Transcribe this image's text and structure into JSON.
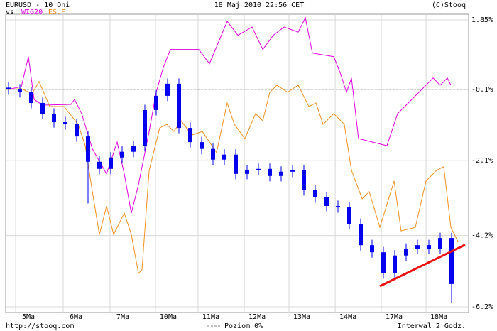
{
  "chart_data": {
    "type": "candlestick",
    "title": "EURUSD - 10 Dni",
    "vs": "vs",
    "date": "18 Maj 2010 22:56 CET",
    "copyright": "(C)Stooq",
    "footer_left": "http://stooq.com",
    "footer_right": "Interwal 2 Godz.",
    "level_label": "Poziom 0%",
    "level": -0.1,
    "candle_color": "#0000ee",
    "x": [
      0,
      1,
      2,
      3,
      4,
      5,
      6,
      7,
      8,
      9,
      10,
      11,
      12,
      13,
      14,
      15,
      16,
      17,
      18,
      19,
      20,
      21,
      22,
      23,
      24,
      25,
      26,
      27,
      28,
      29,
      30,
      31,
      32,
      33,
      34,
      35,
      36,
      37,
      38,
      39
    ],
    "open": [
      -0.05,
      -0.1,
      -0.18,
      -0.48,
      -0.78,
      -1.02,
      -1.08,
      -1.42,
      -2.13,
      -2.33,
      -2.01,
      -1.85,
      -1.69,
      -0.68,
      -0.28,
      0.06,
      -1.18,
      -1.58,
      -1.77,
      -2.07,
      -1.93,
      -2.47,
      -2.37,
      -2.33,
      -2.53,
      -2.41,
      -2.37,
      -2.93,
      -3.13,
      -3.37,
      -3.41,
      -3.87,
      -4.47,
      -4.67,
      -5.26,
      -4.76,
      -4.57,
      -4.47,
      -4.57,
      -4.27
    ],
    "high": [
      0.1,
      0.05,
      -0.03,
      -0.33,
      -0.63,
      -0.87,
      -0.93,
      -1.27,
      -1.98,
      -1.86,
      -1.7,
      -1.54,
      -0.53,
      -0.13,
      0.21,
      0.21,
      -1.03,
      -1.43,
      -1.62,
      -1.78,
      -1.78,
      -2.22,
      -2.18,
      -2.18,
      -2.26,
      -2.22,
      -2.22,
      -2.78,
      -2.98,
      -3.22,
      -3.26,
      -3.72,
      -4.32,
      -4.52,
      -4.61,
      -4.42,
      -4.32,
      -4.32,
      -4.12,
      -4.12
    ],
    "low": [
      -0.25,
      -0.33,
      -0.63,
      -0.93,
      -1.17,
      -1.23,
      -1.57,
      -3.3,
      -2.48,
      -2.48,
      -2.16,
      -2.0,
      -1.84,
      -0.83,
      -0.43,
      -1.33,
      -1.73,
      -1.92,
      -2.22,
      -2.22,
      -2.62,
      -2.62,
      -2.52,
      -2.68,
      -2.68,
      -2.56,
      -3.08,
      -3.28,
      -3.52,
      -3.56,
      -4.02,
      -4.62,
      -4.82,
      -5.41,
      -5.41,
      -4.91,
      -4.72,
      -4.72,
      -4.72,
      -6.1
    ],
    "close": [
      -0.1,
      -0.18,
      -0.48,
      -0.78,
      -1.02,
      -1.08,
      -1.42,
      -2.13,
      -2.33,
      -2.01,
      -1.85,
      -1.69,
      -0.68,
      -0.28,
      0.06,
      -1.18,
      -1.58,
      -1.77,
      -2.07,
      -1.93,
      -2.47,
      -2.37,
      -2.33,
      -2.53,
      -2.41,
      -2.37,
      -2.93,
      -3.13,
      -3.37,
      -3.41,
      -3.87,
      -4.47,
      -4.67,
      -5.26,
      -4.76,
      -4.57,
      -4.47,
      -4.57,
      -4.27,
      -5.56
    ],
    "series": [
      {
        "name": "WIG20",
        "color": "#e000e0",
        "x": [
          0,
          1.13,
          1.75,
          2.25,
          3.0,
          5.5,
          5.81,
          6.44,
          7.38,
          8.63,
          9.56,
          10.19,
          10.81,
          11.44,
          12.38,
          13.0,
          13.63,
          14.25,
          16.75,
          17.69,
          19.25,
          20.19,
          21.44,
          22.38,
          23.31,
          24.25,
          25.5,
          26.13,
          26.75,
          28.63,
          29.25,
          29.75,
          30.19,
          30.81,
          33.31,
          34.25,
          34.88,
          36.13,
          37.38,
          38.0,
          38.63,
          38.94
        ],
        "values": [
          -0.1,
          -0.02,
          0.82,
          -0.38,
          -0.54,
          -0.52,
          -0.38,
          -0.78,
          -1.77,
          -2.47,
          -1.58,
          -2.47,
          -3.57,
          -2.77,
          -1.28,
          -0.18,
          0.52,
          1.02,
          1.02,
          0.62,
          1.81,
          1.42,
          1.65,
          1.02,
          1.42,
          1.65,
          1.51,
          1.91,
          0.92,
          0.82,
          0.32,
          -0.18,
          0.22,
          -1.48,
          -1.68,
          -0.78,
          -0.58,
          -0.18,
          0.22,
          0.02,
          0.22,
          0.02
        ]
      },
      {
        "name": "ES.F",
        "color": "#f09020",
        "x": [
          0,
          1.13,
          2.06,
          2.69,
          3.63,
          4.88,
          6.13,
          6.75,
          7.38,
          8.0,
          8.63,
          9.25,
          10.19,
          10.81,
          11.44,
          11.75,
          12.38,
          13.31,
          13.94,
          14.56,
          15.19,
          16.13,
          17.06,
          18.31,
          19.25,
          19.88,
          20.81,
          21.75,
          22.38,
          23.0,
          23.63,
          24.56,
          25.5,
          26.44,
          27.06,
          27.69,
          28.63,
          29.56,
          30.19,
          31.13,
          31.75,
          32.69,
          33.94,
          34.56,
          35.81,
          36.75,
          37.69,
          38.31,
          38.94,
          39.56
        ],
        "values": [
          -0.1,
          -0.08,
          -0.22,
          0.12,
          -0.58,
          -0.58,
          -1.08,
          -1.67,
          -2.97,
          -4.17,
          -3.37,
          -4.17,
          -3.57,
          -4.17,
          -5.26,
          -5.16,
          -2.37,
          -1.18,
          -1.08,
          -1.28,
          -0.98,
          -1.38,
          -1.28,
          -1.87,
          -0.48,
          -1.08,
          -1.48,
          -0.78,
          -0.98,
          -0.18,
          0.02,
          -0.18,
          0.02,
          -0.58,
          -0.48,
          -1.08,
          -0.78,
          -1.08,
          -2.37,
          -3.17,
          -2.97,
          -3.97,
          -2.67,
          -4.07,
          -3.97,
          -2.67,
          -2.37,
          -2.27,
          -3.97,
          -4.37
        ]
      }
    ],
    "trendline": {
      "color": "#ee1111",
      "x": [
        32.69,
        40.19
      ],
      "values": [
        -5.62,
        -4.46
      ]
    },
    "xlim": [
      -0.25,
      40.5
    ],
    "ylim": [
      -6.36,
      2.01
    ],
    "xticks": [
      {
        "value": 1.75,
        "label": "5Ma"
      },
      {
        "value": 5.94,
        "label": "6Ma"
      },
      {
        "value": 10.06,
        "label": "7Ma"
      },
      {
        "value": 14.06,
        "label": "10Ma"
      },
      {
        "value": 17.81,
        "label": "11Ma"
      },
      {
        "value": 21.88,
        "label": "12Ma"
      },
      {
        "value": 25.81,
        "label": "13Ma"
      },
      {
        "value": 29.88,
        "label": "14Ma"
      },
      {
        "value": 33.94,
        "label": "17Ma"
      },
      {
        "value": 37.88,
        "label": "18Ma"
      }
    ],
    "yticks": [
      {
        "value": 1.85,
        "label": "1.85%"
      },
      {
        "value": -0.1,
        "label": "-0.1%"
      },
      {
        "value": -2.1,
        "label": "-2.1%"
      },
      {
        "value": -4.2,
        "label": "-4.2%"
      },
      {
        "value": -6.2,
        "label": "-6.2%"
      }
    ],
    "grid": true
  }
}
